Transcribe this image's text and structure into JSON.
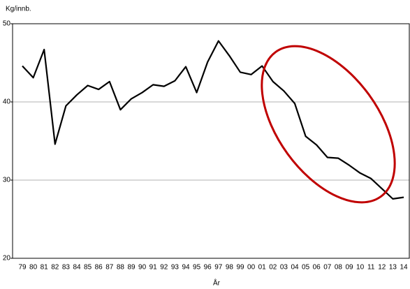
{
  "chart_data": {
    "type": "line",
    "y_axis_label": "Kg/innb.",
    "x_axis_label": "År",
    "categories": [
      "79",
      "80",
      "81",
      "82",
      "83",
      "84",
      "85",
      "86",
      "87",
      "88",
      "89",
      "90",
      "91",
      "92",
      "93",
      "94",
      "95",
      "96",
      "97",
      "98",
      "99",
      "00",
      "01",
      "02",
      "03",
      "04",
      "05",
      "06",
      "07",
      "08",
      "09",
      "10",
      "11",
      "12",
      "13",
      "14"
    ],
    "series": [
      {
        "name": "Kg/innb.",
        "color": "#000000",
        "values": [
          44.6,
          43.1,
          46.7,
          34.6,
          39.5,
          40.9,
          42.1,
          41.6,
          42.6,
          39.0,
          40.4,
          41.2,
          42.2,
          42.0,
          42.7,
          44.5,
          41.2,
          45.1,
          47.8,
          45.9,
          43.8,
          43.5,
          44.6,
          42.6,
          41.4,
          39.8,
          35.6,
          34.5,
          32.9,
          32.8,
          31.9,
          30.9,
          30.2,
          28.9,
          27.6,
          27.8
        ]
      }
    ],
    "ylim": [
      20,
      50
    ],
    "yticks": [
      20,
      30,
      40,
      50
    ],
    "grid": true
  }
}
